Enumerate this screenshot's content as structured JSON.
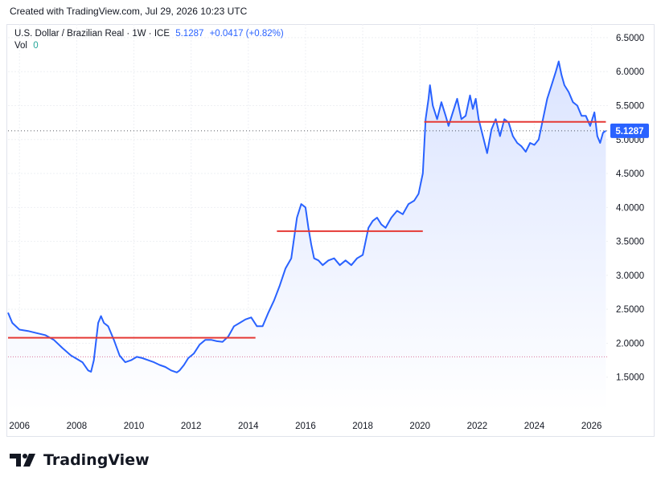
{
  "created": "Created with TradingView.com, Jul 29, 2026 10:23 UTC",
  "header": {
    "symbol": "U.S. Dollar / Brazilian Real · 1W · ICE",
    "last": "5.1287",
    "change": "+0.0417 (+0.82%)",
    "vol_label": "Vol",
    "vol_value": "0"
  },
  "brand": "TradingView",
  "colors": {
    "line": "#2962ff",
    "hline": "#e53935",
    "area_top": "#dbe4ff",
    "area_bottom": "#ffffff",
    "badge": "#2962ff",
    "dotted_level": "#c2185b"
  },
  "chart_data": {
    "type": "area",
    "title": "",
    "xlabel": "",
    "ylabel": "",
    "xlim": [
      2005.6,
      2026.6
    ],
    "ylim": [
      1.0,
      6.7
    ],
    "x_ticks": [
      "2006",
      "2008",
      "2010",
      "2012",
      "2014",
      "2016",
      "2018",
      "2020",
      "2022",
      "2024",
      "2026"
    ],
    "y_ticks": [
      "1.5000",
      "2.0000",
      "2.5000",
      "3.0000",
      "3.5000",
      "4.0000",
      "4.5000",
      "5.0000",
      "5.5000",
      "6.0000",
      "6.5000"
    ],
    "last_value_label": "5.1287",
    "last_value": 5.1287,
    "grid": true,
    "reference_level": 1.8,
    "horizontal_lines": [
      {
        "from": 2005.6,
        "to": 2014.25,
        "y": 2.08
      },
      {
        "from": 2015.0,
        "to": 2020.1,
        "y": 3.65
      },
      {
        "from": 2020.15,
        "to": 2026.5,
        "y": 5.26
      }
    ],
    "series": [
      {
        "x": [
          2005.6,
          2005.75,
          2006.0,
          2006.3,
          2006.6,
          2006.9,
          2007.2,
          2007.5,
          2007.8,
          2008.0,
          2008.2,
          2008.4,
          2008.5,
          2008.6,
          2008.75,
          2008.85,
          2008.95,
          2009.1,
          2009.3,
          2009.5,
          2009.7,
          2009.9,
          2010.1,
          2010.3,
          2010.5,
          2010.7,
          2010.9,
          2011.1,
          2011.3,
          2011.5,
          2011.6,
          2011.75,
          2011.9,
          2012.1,
          2012.3,
          2012.5,
          2012.7,
          2012.9,
          2013.1,
          2013.3,
          2013.5,
          2013.7,
          2013.9,
          2014.1,
          2014.3,
          2014.5,
          2014.7,
          2014.9,
          2015.1,
          2015.3,
          2015.5,
          2015.7,
          2015.85,
          2016.0,
          2016.1,
          2016.2,
          2016.3,
          2016.45,
          2016.6,
          2016.8,
          2017.0,
          2017.2,
          2017.4,
          2017.6,
          2017.8,
          2018.0,
          2018.2,
          2018.35,
          2018.5,
          2018.65,
          2018.8,
          2019.0,
          2019.2,
          2019.4,
          2019.6,
          2019.8,
          2019.95,
          2020.1,
          2020.2,
          2020.3,
          2020.35,
          2020.45,
          2020.6,
          2020.75,
          2020.9,
          2021.0,
          2021.15,
          2021.3,
          2021.45,
          2021.6,
          2021.75,
          2021.85,
          2021.95,
          2022.05,
          2022.2,
          2022.35,
          2022.5,
          2022.65,
          2022.8,
          2022.95,
          2023.1,
          2023.25,
          2023.4,
          2023.55,
          2023.7,
          2023.85,
          2024.0,
          2024.15,
          2024.3,
          2024.45,
          2024.6,
          2024.75,
          2024.85,
          2024.95,
          2025.05,
          2025.2,
          2025.35,
          2025.5,
          2025.65,
          2025.8,
          2025.95,
          2026.1,
          2026.2,
          2026.3,
          2026.4,
          2026.5
        ],
        "y": [
          2.45,
          2.3,
          2.2,
          2.18,
          2.15,
          2.12,
          2.05,
          1.93,
          1.82,
          1.77,
          1.72,
          1.6,
          1.58,
          1.75,
          2.3,
          2.4,
          2.3,
          2.25,
          2.05,
          1.82,
          1.72,
          1.75,
          1.8,
          1.78,
          1.75,
          1.72,
          1.68,
          1.65,
          1.6,
          1.57,
          1.6,
          1.68,
          1.78,
          1.85,
          1.98,
          2.05,
          2.05,
          2.03,
          2.02,
          2.1,
          2.25,
          2.3,
          2.35,
          2.38,
          2.25,
          2.25,
          2.45,
          2.63,
          2.85,
          3.1,
          3.25,
          3.85,
          4.05,
          4.0,
          3.7,
          3.45,
          3.25,
          3.22,
          3.15,
          3.22,
          3.25,
          3.15,
          3.22,
          3.15,
          3.25,
          3.3,
          3.7,
          3.8,
          3.85,
          3.75,
          3.7,
          3.85,
          3.95,
          3.9,
          4.05,
          4.1,
          4.2,
          4.5,
          5.3,
          5.6,
          5.8,
          5.5,
          5.3,
          5.55,
          5.35,
          5.2,
          5.4,
          5.6,
          5.3,
          5.35,
          5.65,
          5.45,
          5.6,
          5.3,
          5.05,
          4.8,
          5.15,
          5.3,
          5.05,
          5.3,
          5.25,
          5.05,
          4.95,
          4.9,
          4.82,
          4.95,
          4.92,
          5.0,
          5.3,
          5.6,
          5.8,
          6.0,
          6.15,
          5.95,
          5.8,
          5.7,
          5.55,
          5.5,
          5.35,
          5.35,
          5.2,
          5.4,
          5.05,
          4.95,
          5.1,
          5.13
        ]
      }
    ]
  }
}
